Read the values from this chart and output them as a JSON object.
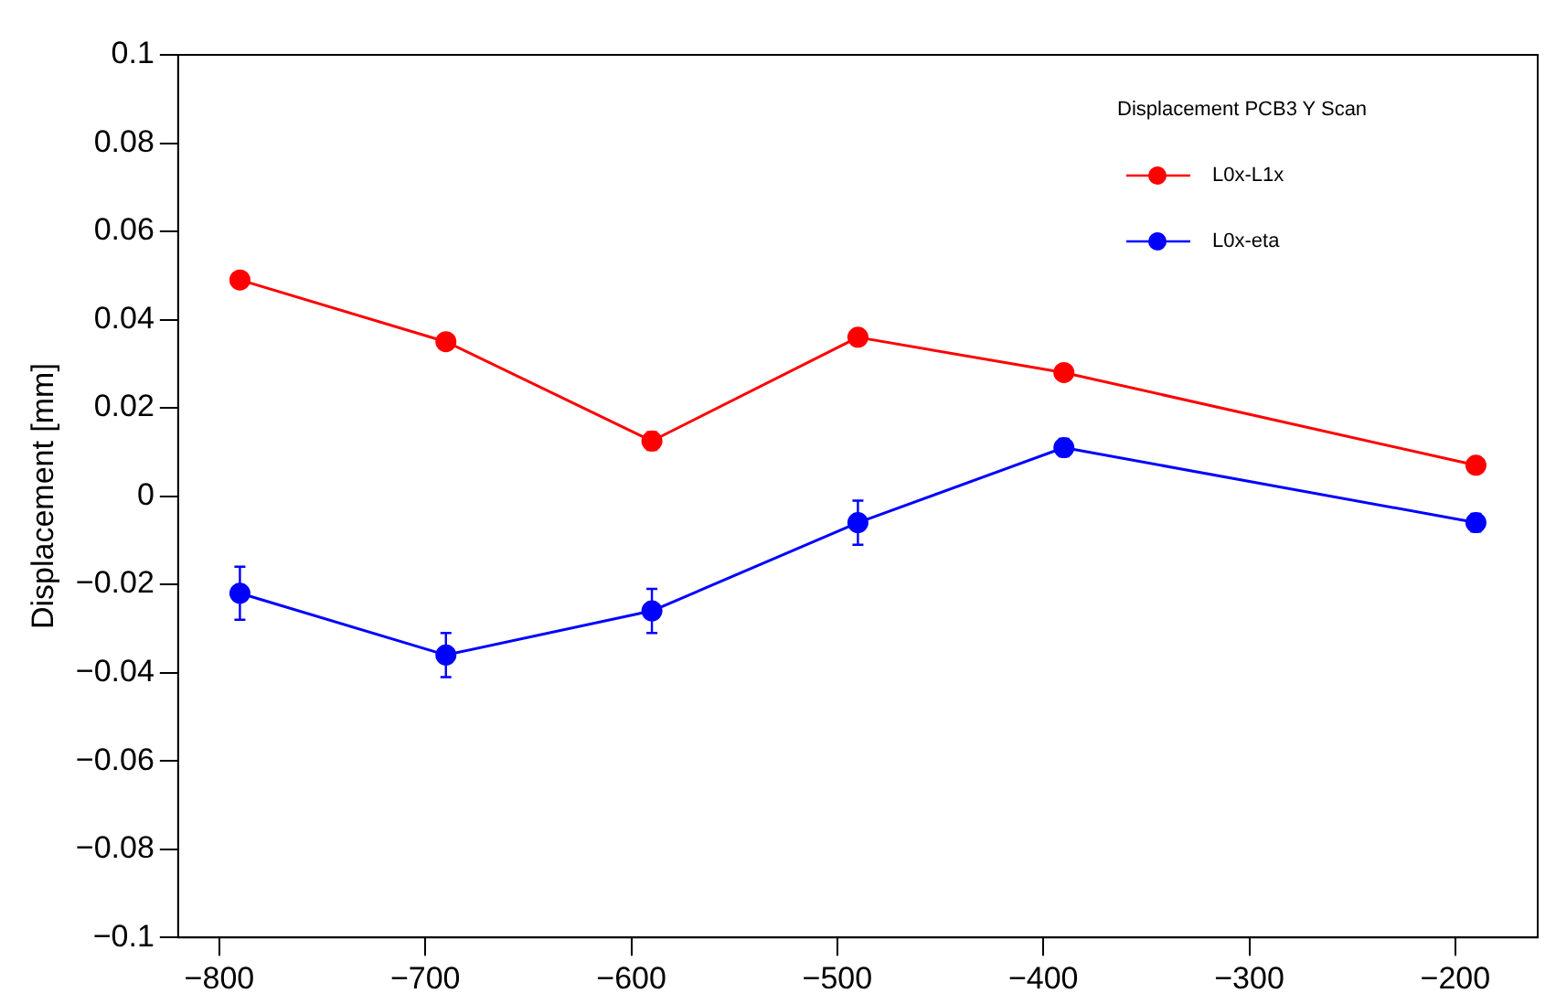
{
  "chart_data": {
    "type": "line",
    "ylabel": "Displacement [mm]",
    "legend_title": "Displacement PCB3 Y Scan",
    "legend": "top right",
    "grid": false,
    "marker": "circle",
    "x": [
      -790,
      -690,
      -590,
      -490,
      -390,
      -190
    ],
    "xlim": [
      -820,
      -160
    ],
    "xticks": [
      {
        "value": -800,
        "label": "−800"
      },
      {
        "value": -700,
        "label": "−700"
      },
      {
        "value": -600,
        "label": "−600"
      },
      {
        "value": -500,
        "label": "−500"
      },
      {
        "value": -400,
        "label": "−400"
      },
      {
        "value": -300,
        "label": "−300"
      },
      {
        "value": -200,
        "label": "−200"
      }
    ],
    "ylim": [
      -0.1,
      0.1
    ],
    "yticks": [
      {
        "value": -0.1,
        "label": "−0.1"
      },
      {
        "value": -0.08,
        "label": "−0.08"
      },
      {
        "value": -0.06,
        "label": "−0.06"
      },
      {
        "value": -0.04,
        "label": "−0.04"
      },
      {
        "value": -0.02,
        "label": "−0.02"
      },
      0,
      0.02,
      0.04,
      0.06,
      0.08,
      0.1
    ],
    "series": [
      {
        "name": "L0x-L1x",
        "color": "#ff0000",
        "values": [
          0.049,
          0.035,
          0.0125,
          0.036,
          0.028,
          0.007
        ],
        "errors": [
          null,
          null,
          0.002,
          null,
          null,
          null
        ]
      },
      {
        "name": "L0x-eta",
        "color": "#0000ff",
        "values": [
          -0.022,
          -0.036,
          -0.026,
          -0.006,
          0.011,
          -0.006
        ],
        "errors": [
          0.006,
          0.005,
          0.005,
          0.005,
          0.002,
          0.002
        ]
      }
    ]
  }
}
